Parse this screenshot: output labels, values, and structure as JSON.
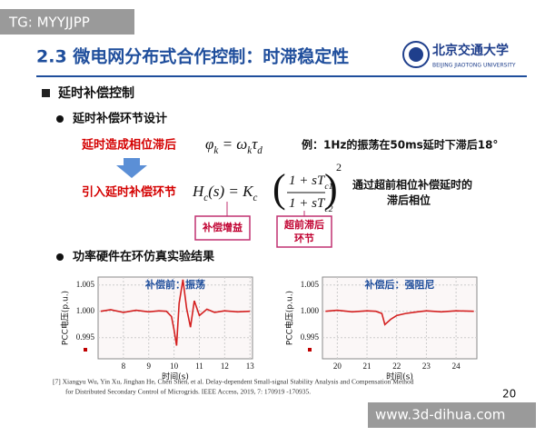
{
  "header": {
    "watermark": "TG: MYYJJPP",
    "title": "2.3 微电网分布式合作控制：时滞稳定性",
    "logo_cn": "北京交通大学",
    "logo_en": "BEIJING JIAOTONG UNIVERSITY"
  },
  "section": "延时补偿控制",
  "sub1": "延时补偿环节设计",
  "cause": "延时造成相位滞后",
  "formula1": [
    "φ",
    "k",
    " = ω",
    "k",
    "τ",
    "d"
  ],
  "example": "例：1Hz的振荡在50ms延时下滞后18°",
  "remedy": "引入延时补偿环节",
  "formula2": {
    "lhs": [
      "H",
      "c",
      "(s) = K",
      "c"
    ],
    "num": [
      "1 + sT",
      "c1"
    ],
    "den": [
      "1 + sT",
      "c2"
    ],
    "power": "2"
  },
  "note": [
    "通过超前相位补偿延时的",
    "滞后相位"
  ],
  "tag_gain": "补偿增益",
  "tag_lead": [
    "超前滞后",
    "环节"
  ],
  "sub2": "功率硬件在环仿真实验结果",
  "charts": [
    {
      "type": "line",
      "title": "补偿前：振荡",
      "ylabel": "PCC电压(p.u.)",
      "xlabel": "时间(s)",
      "x": [
        7.1,
        7.5,
        8,
        8.5,
        9,
        9.4,
        9.7,
        9.9,
        10.0,
        10.1,
        10.2,
        10.35,
        10.5,
        10.65,
        10.8,
        11,
        11.3,
        11.6,
        12,
        12.5,
        13
      ],
      "series": [
        {
          "color": "#d42020",
          "values": [
            1.0,
            1.0003,
            0.9998,
            1.0002,
            0.9999,
            1.0001,
            1.0,
            0.999,
            0.9965,
            0.9935,
            1.0015,
            1.006,
            1.0005,
            0.997,
            1.002,
            0.9992,
            1.0004,
            0.9998,
            1.0001,
            0.9999,
            1.0
          ]
        }
      ],
      "xlim": [
        7,
        13.1
      ],
      "ylim": [
        0.991,
        1.0065
      ],
      "xticks": [
        8,
        9,
        10,
        11,
        12,
        13
      ],
      "yticks": [
        1.005,
        {
          "value": 1,
          "label": "1.000"
        },
        0.995
      ],
      "grid": true
    },
    {
      "type": "line",
      "title": "补偿后：强阻尼",
      "ylabel": "PCC电压(p.u.)",
      "xlabel": "时间(s)",
      "x": [
        19.6,
        20,
        20.5,
        21,
        21.3,
        21.5,
        21.6,
        21.8,
        22,
        22.3,
        22.7,
        23,
        23.5,
        24,
        24.6
      ],
      "series": [
        {
          "color": "#d42020",
          "values": [
            1.0,
            1.0002,
            0.9999,
            1.0001,
            1.0,
            0.9996,
            0.9975,
            0.9985,
            0.9992,
            0.9996,
            0.9999,
            1.0001,
            0.9999,
            1.0001,
            1.0
          ]
        }
      ],
      "xlim": [
        19.5,
        24.7
      ],
      "ylim": [
        0.991,
        1.0065
      ],
      "xticks": [
        20,
        21,
        22,
        23,
        24
      ],
      "yticks": [
        1.005,
        {
          "value": 1,
          "label": "1.000"
        },
        0.995
      ],
      "grid": true
    }
  ],
  "reference": [
    "[7] Xiangyu Wu, Yin Xu, Jinghan He, Chen Shen, et al. Delay-dependent Small-signal Stability Analysis and Compensation Method",
    "for Distributed Secondary Control of Microgrids. IEEE Access, 2019, 7: 170919 -170935."
  ],
  "page_number": "20",
  "footer_watermark": "www.3d-dihua.com"
}
